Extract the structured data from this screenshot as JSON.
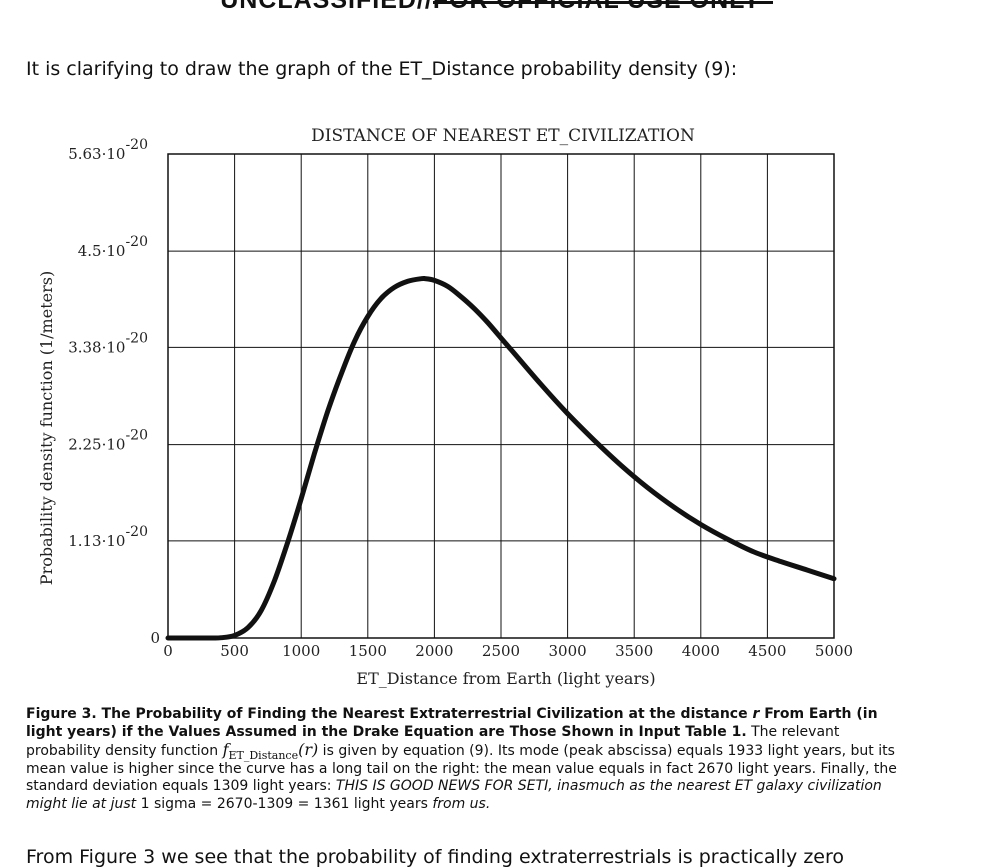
{
  "header": {
    "banner_left": "UNCLASSIFIED//",
    "banner_right": "FOR OFFICIAL USE ONLY"
  },
  "intro": "It is clarifying to draw the graph of the ET_Distance probability density (9):",
  "chart_data": {
    "type": "line",
    "title": "DISTANCE OF NEAREST ET_CIVILIZATION",
    "xlabel": "ET_Distance from Earth (light years)",
    "ylabel": "Probability density function (1/meters)",
    "xlim": [
      0,
      5000
    ],
    "ylim": [
      0,
      5.63e-20
    ],
    "xticks": [
      "0",
      "500",
      "1000",
      "1500",
      "2000",
      "2500",
      "3000",
      "3500",
      "4000",
      "4500",
      "5000"
    ],
    "yticks": [
      {
        "value": 0,
        "base": "0",
        "exp": ""
      },
      {
        "value": 1.13e-20,
        "base": "1.13·10",
        "exp": "-20"
      },
      {
        "value": 2.25e-20,
        "base": "2.25·10",
        "exp": "-20"
      },
      {
        "value": 3.38e-20,
        "base": "3.38·10",
        "exp": "-20"
      },
      {
        "value": 4.5e-20,
        "base": "4.5·10",
        "exp": "-20"
      },
      {
        "value": 5.63e-20,
        "base": "5.63·10",
        "exp": "-20"
      }
    ],
    "grid": true,
    "series": [
      {
        "x": [
          0,
          300,
          400,
          500,
          600,
          700,
          800,
          900,
          1000,
          1100,
          1200,
          1300,
          1400,
          1500,
          1600,
          1700,
          1800,
          1900,
          1933,
          2000,
          2100,
          2200,
          2300,
          2400,
          2500,
          2600,
          2800,
          3000,
          3200,
          3400,
          3600,
          3800,
          4000,
          4200,
          4400,
          4600,
          4800,
          5000
        ],
        "y": [
          2e-24,
          2e-24,
          3e-23,
          3e-22,
          1.2e-21,
          3.2e-21,
          6.7e-21,
          1.12e-20,
          1.62e-20,
          2.15e-20,
          2.64e-20,
          3.07e-20,
          3.45e-20,
          3.74e-20,
          3.95e-20,
          4.08e-20,
          4.15e-20,
          4.18e-20,
          4.18e-20,
          4.16e-20,
          4.09e-20,
          3.97e-20,
          3.83e-20,
          3.67e-20,
          3.49e-20,
          3.31e-20,
          2.95e-20,
          2.61e-20,
          2.3e-20,
          2.01e-20,
          1.75e-20,
          1.52e-20,
          1.32e-20,
          1.15e-20,
          1e-20,
          8.9e-21,
          7.9e-21,
          6.9e-21
        ]
      }
    ]
  },
  "caption": {
    "bold_lead": "Figure 3. The Probability of Finding the Nearest Extraterrestrial Civilization at the distance ",
    "bold_r": "r",
    "bold_rest": " From Earth (in light years) if the Values Assumed in the Drake Equation are Those Shown in Input Table 1.",
    "text1": " The relevant probability density function ",
    "f_symbol": "f",
    "f_sub": "ET_Distance",
    "f_arg": "(r)",
    "text2": " is given by equation (9). Its mode (peak abscissa) equals 1933 light years, but its mean value is higher since the curve has a long tail on the right: the mean value equals in fact 2670 light years. Finally, the standard deviation equals 1309 light years: ",
    "italic1": "THIS IS GOOD NEWS FOR SETI, inasmuch as the nearest ET galaxy civilization might lie at just",
    "text3": " 1 sigma = 2670-1309 = 1361 light years ",
    "italic2": "from us."
  },
  "bottom_text": "From Figure 3 we see that the probability of finding extraterrestrials is practically zero"
}
